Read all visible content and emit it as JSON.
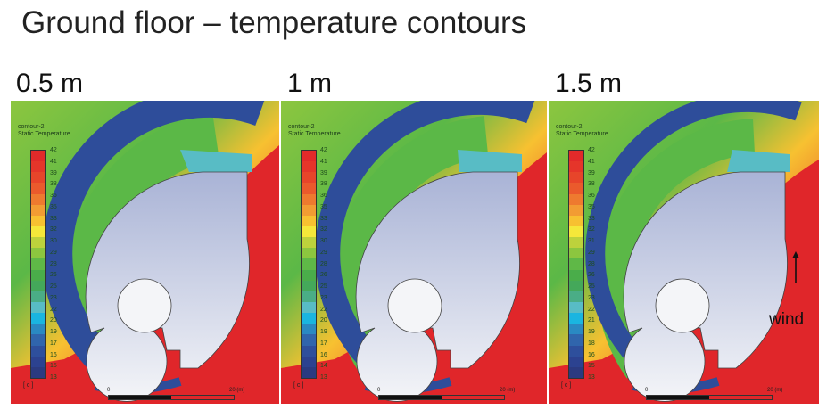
{
  "title": "Ground floor – temperature contours",
  "colors": {
    "bands": [
      "#e22a2a",
      "#e5352a",
      "#e7452a",
      "#ea5a2c",
      "#ee7a2f",
      "#f29c33",
      "#f7c131",
      "#f5e83a",
      "#bdd23c",
      "#8cc63f",
      "#5fb847",
      "#4aad4a",
      "#44a85a",
      "#4aad86",
      "#58bcc5",
      "#1ab5e0",
      "#2a89c2",
      "#3065ac",
      "#2e4f9c",
      "#2c4290",
      "#2b3a80"
    ],
    "red": "#e0262a",
    "green": "#5bb847",
    "blue": "#2e4d9a",
    "building": "#c9cfe0"
  },
  "panels": [
    {
      "label": "0.5 m",
      "legend_title": "contour-2",
      "legend_subtitle": "Static Temperature",
      "ticks": [
        "42",
        "41",
        "39",
        "38",
        "36",
        "35",
        "33",
        "32",
        "30",
        "29",
        "28",
        "26",
        "25",
        "23",
        "22",
        "20",
        "19",
        "17",
        "16",
        "15",
        "13"
      ],
      "unit": "[ c ]",
      "scale_start": "0",
      "scale_end": "20 (m)"
    },
    {
      "label": "1 m",
      "legend_title": "contour-2",
      "legend_subtitle": "Static Temperature",
      "ticks": [
        "42",
        "41",
        "39",
        "38",
        "36",
        "35",
        "33",
        "32",
        "30",
        "29",
        "28",
        "26",
        "25",
        "23",
        "22",
        "20",
        "19",
        "17",
        "16",
        "14",
        "13"
      ],
      "unit": "[ c ]",
      "scale_start": "0",
      "scale_end": "20 (m)"
    },
    {
      "label": "1.5 m",
      "legend_title": "contour-2",
      "legend_subtitle": "Static Temperature",
      "ticks": [
        "42",
        "41",
        "39",
        "38",
        "36",
        "35",
        "33",
        "32",
        "31",
        "29",
        "28",
        "26",
        "25",
        "23",
        "22",
        "21",
        "19",
        "18",
        "16",
        "15",
        "13"
      ],
      "unit": "[ c ]",
      "scale_start": "0",
      "scale_end": "20 (m)"
    }
  ],
  "wind_label": "wind",
  "icons": {
    "wind": "arrow-up-icon"
  }
}
